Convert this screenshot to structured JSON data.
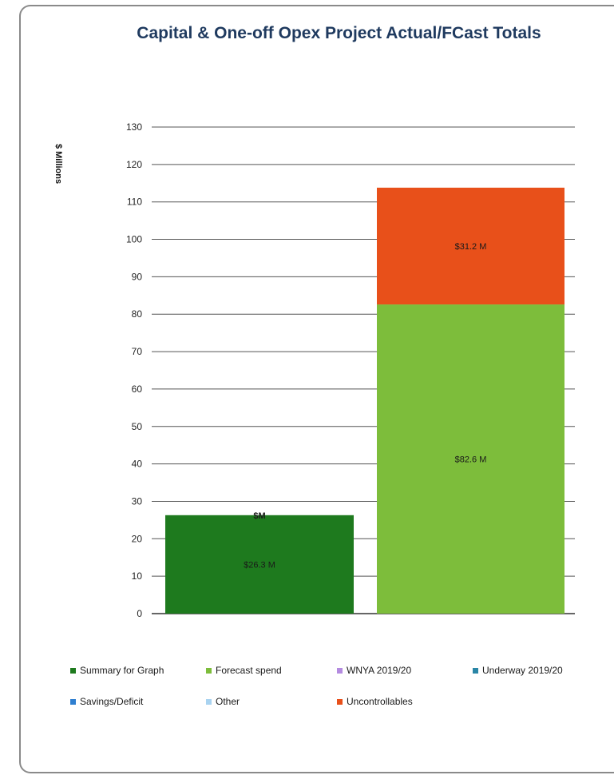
{
  "chart_data": {
    "type": "bar",
    "stacked": true,
    "title": "Capital & One-off Opex Project Actual/FCast Totals",
    "ylabel": "$ Millions",
    "ylim": [
      0,
      130
    ],
    "yticks": [
      0,
      10,
      20,
      30,
      40,
      50,
      60,
      70,
      80,
      90,
      100,
      110,
      120,
      130
    ],
    "grid": true,
    "legend_position": "bottom",
    "categories": [
      "",
      ""
    ],
    "series": [
      {
        "name": "Summary for Graph",
        "color": "#1e7a1e",
        "values": [
          26.3,
          0
        ],
        "labels": [
          "$26.3 M",
          ""
        ]
      },
      {
        "name": "Forecast spend",
        "color": "#7dbd3b",
        "values": [
          0,
          82.6
        ],
        "labels": [
          "",
          "$82.6 M"
        ]
      },
      {
        "name": "WNYA 2019/20",
        "color": "#b48be0",
        "values": [
          0,
          0
        ],
        "labels": [
          "",
          ""
        ]
      },
      {
        "name": "Underway 2019/20",
        "color": "#2a86a6",
        "values": [
          0,
          0
        ],
        "labels": [
          "",
          ""
        ]
      },
      {
        "name": "Savings/Deficit",
        "color": "#2f7fd0",
        "values": [
          0,
          0
        ],
        "labels": [
          "$M",
          ""
        ]
      },
      {
        "name": "Other",
        "color": "#a9d3f0",
        "values": [
          0,
          0
        ],
        "labels": [
          "",
          ""
        ]
      },
      {
        "name": "Uncontrollables",
        "color": "#e8501a",
        "values": [
          0,
          31.2
        ],
        "labels": [
          "",
          "$31.2 M"
        ]
      }
    ]
  }
}
